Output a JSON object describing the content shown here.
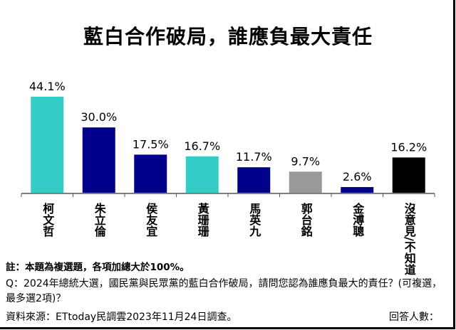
{
  "chart_data": {
    "type": "bar",
    "title": "藍白合作破局，誰應負最大責任",
    "categories": [
      "柯文哲",
      "朱立倫",
      "侯友宜",
      "黃珊珊",
      "馬英九",
      "郭台銘",
      "金溥聰",
      "沒意見/不知道"
    ],
    "values": [
      44.1,
      30.0,
      17.5,
      16.7,
      11.7,
      9.7,
      2.6,
      16.2
    ],
    "data_labels": [
      "44.1%",
      "30.0%",
      "17.5%",
      "16.7%",
      "11.7%",
      "9.7%",
      "2.6%",
      "16.2%"
    ],
    "colors": [
      "#33ccc6",
      "#00008b",
      "#00008b",
      "#33ccc6",
      "#00008b",
      "#999999",
      "#00008b",
      "#000000"
    ],
    "ylim": [
      0,
      50
    ],
    "grid": false,
    "legend": "none"
  },
  "footer": {
    "note": "註：本題為複選題，各項加總大於100%。",
    "question": "Q：2024年總統大選，國民黨與民眾黨的藍白合作破局，請問您認為誰應負最大的責任？(可複選，最多選2項)？",
    "source": "資料來源：ETtoday民調雲2023年11月24日調查。",
    "respondents_label": "回答人數："
  }
}
